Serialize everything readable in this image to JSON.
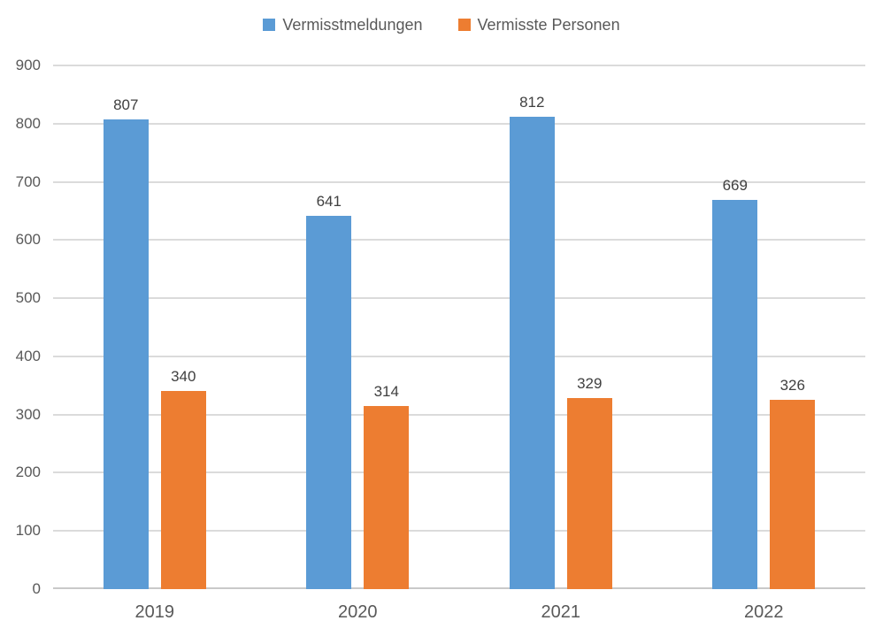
{
  "chart_data": {
    "type": "bar",
    "categories": [
      "2019",
      "2020",
      "2021",
      "2022"
    ],
    "series": [
      {
        "name": "Vermisstmeldungen",
        "color": "#5B9BD5",
        "values": [
          807,
          641,
          812,
          669
        ]
      },
      {
        "name": "Vermisste Personen",
        "color": "#ED7D31",
        "values": [
          340,
          314,
          329,
          326
        ]
      }
    ],
    "ylim": [
      0,
      900
    ],
    "yticks": [
      0,
      100,
      200,
      300,
      400,
      500,
      600,
      700,
      800,
      900
    ],
    "grid": "horizontal",
    "legend_position": "top",
    "data_labels": true,
    "xlabel": "",
    "ylabel": ""
  },
  "colors": {
    "background": "#FFFFFF",
    "gridline": "#DBDBDB",
    "axis_line": "#C9C9C9",
    "tick_text": "#595959",
    "data_label_text": "#404040",
    "legend_text": "#595959"
  }
}
